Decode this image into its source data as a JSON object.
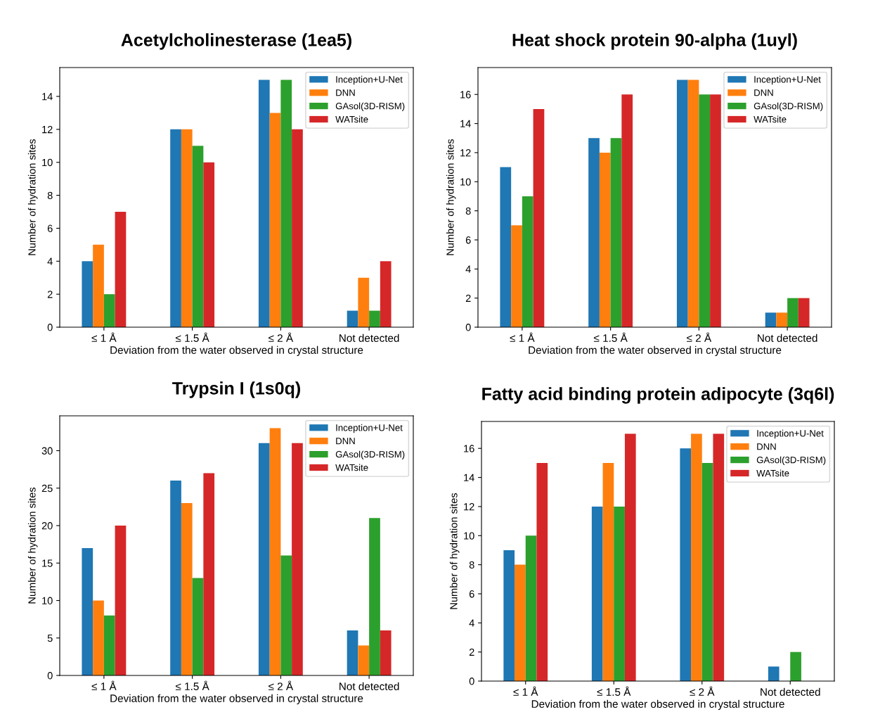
{
  "chart_data": [
    {
      "type": "bar",
      "title": "Acetylcholinesterase (1ea5)",
      "xlabel": "Deviation from the water observed in crystal structure",
      "ylabel": "Number of hydration sites",
      "categories": [
        "≤ 1 Å",
        "≤ 1.5 Å",
        "≤ 2 Å",
        "Not detected"
      ],
      "ylim": [
        0,
        15.75
      ],
      "yticks": [
        0,
        2,
        4,
        6,
        8,
        10,
        12,
        14
      ],
      "legend": "top right",
      "grid": false,
      "series": [
        {
          "name": "Inception+U-Net",
          "color": "#1f77b4",
          "values": [
            4,
            12,
            15,
            1
          ]
        },
        {
          "name": "DNN",
          "color": "#ff7f0e",
          "values": [
            5,
            12,
            13,
            3
          ]
        },
        {
          "name": "GAsol(3D-RISM)",
          "color": "#2ca02c",
          "values": [
            2,
            11,
            15,
            1
          ]
        },
        {
          "name": "WATsite",
          "color": "#d62728",
          "values": [
            7,
            10,
            12,
            4
          ]
        }
      ]
    },
    {
      "type": "bar",
      "title": "Heat shock protein 90-alpha (1uyl)",
      "xlabel": "Deviation from the water observed in crystal structure",
      "ylabel": "Number of hydration sites",
      "categories": [
        "≤ 1 Å",
        "≤ 1.5 Å",
        "≤ 2 Å",
        "Not detected"
      ],
      "ylim": [
        0,
        17.85
      ],
      "yticks": [
        0,
        2,
        4,
        6,
        8,
        10,
        12,
        14,
        16
      ],
      "legend": "top right",
      "grid": false,
      "series": [
        {
          "name": "Inception+U-Net",
          "color": "#1f77b4",
          "values": [
            11,
            13,
            17,
            1
          ]
        },
        {
          "name": "DNN",
          "color": "#ff7f0e",
          "values": [
            7,
            12,
            17,
            1
          ]
        },
        {
          "name": "GAsol(3D-RISM)",
          "color": "#2ca02c",
          "values": [
            9,
            13,
            16,
            2
          ]
        },
        {
          "name": "WATsite",
          "color": "#d62728",
          "values": [
            15,
            16,
            16,
            2
          ]
        }
      ]
    },
    {
      "type": "bar",
      "title": "Trypsin I (1s0q)",
      "xlabel": "Deviation from the water observed in crystal structure",
      "ylabel": "Number of hydration sites",
      "categories": [
        "≤ 1 Å",
        "≤ 1.5 Å",
        "≤ 2 Å",
        "Not detected"
      ],
      "ylim": [
        0,
        34.65
      ],
      "yticks": [
        0,
        5,
        10,
        15,
        20,
        25,
        30
      ],
      "legend": "top right",
      "grid": false,
      "series": [
        {
          "name": "Inception+U-Net",
          "color": "#1f77b4",
          "values": [
            17,
            26,
            31,
            6
          ]
        },
        {
          "name": "DNN",
          "color": "#ff7f0e",
          "values": [
            10,
            23,
            33,
            4
          ]
        },
        {
          "name": "GAsol(3D-RISM)",
          "color": "#2ca02c",
          "values": [
            8,
            13,
            16,
            21
          ]
        },
        {
          "name": "WATsite",
          "color": "#d62728",
          "values": [
            20,
            27,
            31,
            6
          ]
        }
      ]
    },
    {
      "type": "bar",
      "title": "Fatty acid binding protein adipocyte (3q6l)",
      "xlabel": "Deviation from the water observed in crystal structure",
      "ylabel": "Number of hydration sites",
      "categories": [
        "≤ 1 Å",
        "≤ 1.5 Å",
        "≤ 2 Å",
        "Not detected"
      ],
      "ylim": [
        0,
        17.85
      ],
      "yticks": [
        0,
        2,
        4,
        6,
        8,
        10,
        12,
        14,
        16
      ],
      "legend": "top right",
      "grid": false,
      "series": [
        {
          "name": "Inception+U-Net",
          "color": "#1f77b4",
          "values": [
            9,
            12,
            16,
            1
          ]
        },
        {
          "name": "DNN",
          "color": "#ff7f0e",
          "values": [
            8,
            15,
            17,
            0
          ]
        },
        {
          "name": "GAsol(3D-RISM)",
          "color": "#2ca02c",
          "values": [
            10,
            12,
            15,
            2
          ]
        },
        {
          "name": "WATsite",
          "color": "#d62728",
          "values": [
            15,
            17,
            17,
            0
          ]
        }
      ]
    }
  ]
}
